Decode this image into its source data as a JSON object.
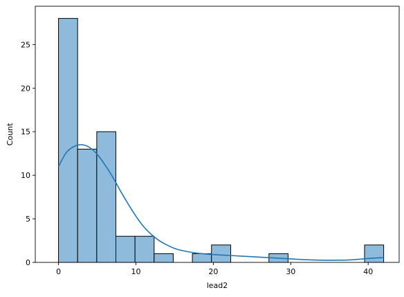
{
  "chart_data": {
    "type": "bar",
    "subtype": "histogram-with-kde",
    "xlabel": "lead2",
    "ylabel": "Count",
    "xlim": [
      -3,
      44
    ],
    "ylim": [
      0,
      29.4
    ],
    "xticks": [
      0,
      10,
      20,
      30,
      40
    ],
    "yticks": [
      0,
      5,
      10,
      15,
      20,
      25
    ],
    "grid": false,
    "legend": "none",
    "bin_width": 2.47,
    "bins": [
      {
        "x0": 0.0,
        "x1": 2.47,
        "count": 28
      },
      {
        "x0": 2.47,
        "x1": 4.94,
        "count": 13
      },
      {
        "x0": 4.94,
        "x1": 7.41,
        "count": 15
      },
      {
        "x0": 7.41,
        "x1": 9.88,
        "count": 3
      },
      {
        "x0": 9.88,
        "x1": 12.35,
        "count": 3
      },
      {
        "x0": 12.35,
        "x1": 14.82,
        "count": 1
      },
      {
        "x0": 17.29,
        "x1": 19.76,
        "count": 1
      },
      {
        "x0": 19.76,
        "x1": 22.24,
        "count": 2
      },
      {
        "x0": 27.18,
        "x1": 29.65,
        "count": 1
      },
      {
        "x0": 39.53,
        "x1": 42.0,
        "count": 2
      }
    ],
    "kde": {
      "x": [
        0,
        1,
        2,
        3,
        4,
        5,
        6,
        7,
        8,
        9,
        10,
        11,
        12,
        13,
        14,
        15,
        16,
        18,
        20,
        22,
        24,
        26,
        28,
        30,
        32,
        34,
        36,
        38,
        40,
        42
      ],
      "y": [
        11.0,
        12.6,
        13.3,
        13.5,
        13.2,
        12.4,
        11.2,
        9.8,
        8.2,
        6.7,
        5.3,
        4.1,
        3.2,
        2.5,
        2.0,
        1.6,
        1.35,
        1.05,
        0.9,
        0.8,
        0.7,
        0.6,
        0.5,
        0.4,
        0.3,
        0.25,
        0.25,
        0.3,
        0.45,
        0.55
      ]
    },
    "colors": {
      "bar_fill": "#8ebadb",
      "bar_edge": "#000000",
      "kde_line": "#1f77b4",
      "axes": "#000000"
    }
  }
}
